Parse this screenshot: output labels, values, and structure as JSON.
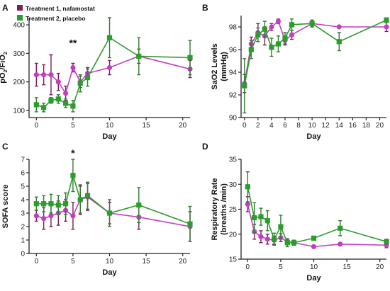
{
  "figure": {
    "legend": [
      {
        "label": "Treatment 1, nafamostat",
        "color": "#7b1f5c"
      },
      {
        "label": "Treatment 2, placebo",
        "color": "#2a9d2a"
      }
    ]
  },
  "colors": {
    "nafamostat_line": "#c23fbf",
    "nafamostat_marker": "#c23fbf",
    "nafamostat_err": "#7b1f5c",
    "placebo_line": "#2a9d2a",
    "placebo_marker": "#2a9d2a",
    "placebo_err": "#2e7d32"
  },
  "chart_data": [
    {
      "panel_label": "A",
      "type": "line",
      "xlabel": "Day",
      "ylabel": "pO2/FiO2",
      "xlim": [
        -1,
        21
      ],
      "ylim": [
        75,
        425
      ],
      "xticks": [
        0,
        5,
        10,
        15,
        20
      ],
      "yticks": [
        100,
        200,
        300,
        400
      ],
      "annotations": [
        {
          "text": "**",
          "x": 5,
          "y": 325
        }
      ],
      "series": [
        {
          "name": "Treatment 1, nafamostat",
          "x": [
            0,
            1,
            2,
            3,
            4,
            5,
            6,
            7,
            10,
            14,
            21
          ],
          "y": [
            225,
            225,
            225,
            200,
            160,
            250,
            200,
            230,
            250,
            290,
            245
          ],
          "err": [
            40,
            35,
            70,
            30,
            25,
            15,
            20,
            20,
            25,
            25,
            30
          ]
        },
        {
          "name": "Treatment 2, placebo",
          "x": [
            0,
            1,
            2,
            3,
            4,
            5,
            6,
            7,
            10,
            14,
            21
          ],
          "y": [
            120,
            110,
            135,
            140,
            125,
            115,
            195,
            215,
            355,
            290,
            285
          ],
          "err": [
            25,
            15,
            10,
            15,
            15,
            20,
            30,
            30,
            70,
            65,
            60
          ]
        }
      ]
    },
    {
      "panel_label": "B",
      "type": "line",
      "xlabel": "Day",
      "ylabel": "SaO2 Levels (mmHg)",
      "xlim": [
        -0.5,
        21
      ],
      "ylim": [
        90,
        99
      ],
      "xticks": [
        0,
        2,
        4,
        6,
        8,
        10,
        12,
        14,
        16,
        18,
        20
      ],
      "yticks": [
        90,
        92,
        94,
        96,
        98
      ],
      "annotations": [],
      "series": [
        {
          "name": "Treatment 1, nafamostat",
          "x": [
            0,
            1,
            2,
            3,
            4,
            5,
            6,
            7,
            10,
            14,
            21
          ],
          "y": [
            93.0,
            96.5,
            97.5,
            97.2,
            98.0,
            98.5,
            96.8,
            97.3,
            98.3,
            98.0,
            98.0
          ],
          "err": [
            0.8,
            0.6,
            0.8,
            0.8,
            0.3,
            0.2,
            0.4,
            0.4,
            0.3,
            0.1,
            0.4
          ]
        },
        {
          "name": "Treatment 2, placebo",
          "x": [
            0,
            1,
            2,
            3,
            4,
            5,
            6,
            7,
            10,
            14,
            21
          ],
          "y": [
            92.8,
            96.0,
            97.3,
            97.8,
            96.2,
            96.5,
            97.0,
            98.2,
            98.3,
            96.7,
            98.6
          ],
          "err": [
            2.4,
            0.8,
            0.6,
            0.7,
            0.8,
            0.7,
            0.5,
            0.5,
            0.3,
            0.8,
            0.2
          ]
        }
      ]
    },
    {
      "panel_label": "C",
      "type": "line",
      "xlabel": "Day",
      "ylabel": "SOFA score",
      "xlim": [
        -1,
        21
      ],
      "ylim": [
        0,
        7
      ],
      "xticks": [
        0,
        5,
        10,
        15,
        20
      ],
      "yticks": [
        0,
        1,
        2,
        3,
        4,
        5,
        6,
        7
      ],
      "annotations": [
        {
          "text": "*",
          "x": 5,
          "y": 7.2
        }
      ],
      "series": [
        {
          "name": "Treatment 1, nafamostat",
          "x": [
            0,
            1,
            2,
            3,
            4,
            5,
            6,
            7,
            10,
            14,
            21
          ],
          "y": [
            2.8,
            2.6,
            2.8,
            3.0,
            3.2,
            2.8,
            4.0,
            4.2,
            3.0,
            2.7,
            2.0
          ],
          "err": [
            0.4,
            0.8,
            0.8,
            0.9,
            0.8,
            1.0,
            1.1,
            1.0,
            0.8,
            0.9,
            1.1
          ]
        },
        {
          "name": "Treatment 2, placebo",
          "x": [
            0,
            1,
            2,
            3,
            4,
            5,
            6,
            7,
            10,
            14,
            21
          ],
          "y": [
            3.7,
            3.7,
            3.7,
            3.6,
            3.7,
            5.8,
            4.0,
            4.3,
            3.0,
            3.6,
            2.2
          ],
          "err": [
            0.5,
            0.6,
            0.7,
            0.7,
            0.8,
            1.2,
            1.0,
            1.0,
            1.0,
            1.3,
            1.3
          ]
        }
      ]
    },
    {
      "panel_label": "D",
      "type": "line",
      "xlabel": "Day",
      "ylabel": "Respiratory Rate (breaths /min)",
      "xlim": [
        -1,
        21
      ],
      "ylim": [
        15,
        35
      ],
      "xticks": [
        0,
        5,
        10,
        15,
        20
      ],
      "yticks": [
        15,
        20,
        25,
        30,
        35
      ],
      "annotations": [],
      "series": [
        {
          "name": "Treatment 1, nafamostat",
          "x": [
            0,
            1,
            2,
            3,
            4,
            5,
            6,
            7,
            10,
            14,
            21
          ],
          "y": [
            26.0,
            20.5,
            19.5,
            19.0,
            18.8,
            19.3,
            18.5,
            18.3,
            17.5,
            18.0,
            17.8
          ],
          "err": [
            1.5,
            1.5,
            1.2,
            1.0,
            0.8,
            0.8,
            0.5,
            0.5,
            0.3,
            0.3,
            0.5
          ]
        },
        {
          "name": "Treatment 2, placebo",
          "x": [
            0,
            1,
            2,
            3,
            4,
            5,
            6,
            7,
            10,
            14,
            21
          ],
          "y": [
            29.5,
            23.3,
            23.5,
            22.7,
            19.0,
            21.5,
            18.3,
            18.3,
            19.2,
            21.2,
            18.5
          ],
          "err": [
            3.0,
            3.0,
            1.7,
            2.0,
            1.2,
            2.3,
            0.8,
            0.5,
            0.4,
            1.5,
            0.5
          ]
        }
      ]
    }
  ]
}
